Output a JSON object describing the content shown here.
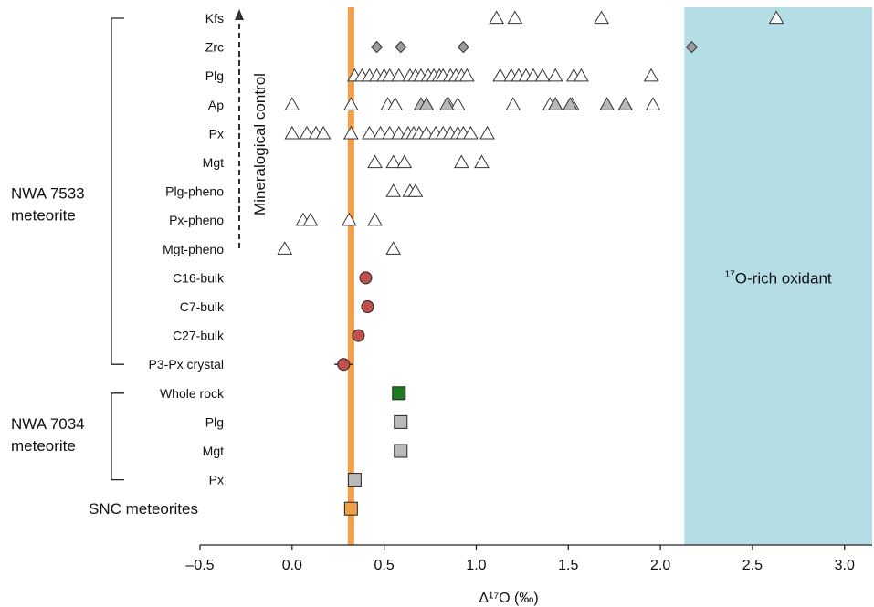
{
  "colors": {
    "oxidant_band": "#b4dde6",
    "snc_line": "#f0a04b",
    "open_triangle": "#ffffff",
    "grey_marker": "#b9b9b9",
    "diamond": "#9c9c9c",
    "bulk_circle": "#c0504d",
    "whole_rock": "#1f7a1f",
    "snc_square": "#f0a04b"
  },
  "chart_data": {
    "type": "scatter",
    "xlabel": "Δ¹⁷O (‰)",
    "xlim": [
      -0.5,
      3.15
    ],
    "xticks": [
      -0.5,
      0.0,
      0.5,
      1.0,
      1.5,
      2.0,
      2.5,
      3.0
    ],
    "xtick_labels": [
      "–0.5",
      "0.0",
      "0.5",
      "1.0",
      "1.5",
      "2.0",
      "2.5",
      "3.0"
    ],
    "snc_line_x": 0.32,
    "oxidant_region": {
      "x_min": 2.13,
      "label_pre": "17",
      "label": "O-rich oxidant"
    },
    "annotation": "Mineralogical control",
    "groups": [
      {
        "label": "NWA 7533\nmeteorite",
        "lines": [
          "NWA 7533",
          "meteorite"
        ]
      },
      {
        "label": "NWA 7034\nmeteorite",
        "lines": [
          "NWA 7034",
          "meteorite"
        ]
      }
    ],
    "bottom_label": "SNC meteorites",
    "categories": [
      "Kfs",
      "Zrc",
      "Plg",
      "Ap",
      "Px",
      "Mgt",
      "Plg-pheno",
      "Px-pheno",
      "Mgt-pheno",
      "C16-bulk",
      "C7-bulk",
      "C27-bulk",
      "P3-Px crystal",
      "Whole rock",
      "Plg",
      "Mgt",
      "Px",
      "SNC meteorites"
    ],
    "series": [
      {
        "row": 0,
        "marker": "triangle-open",
        "x": [
          1.11,
          1.21,
          1.68,
          2.63
        ]
      },
      {
        "row": 1,
        "marker": "diamond",
        "x": [
          0.46,
          0.59,
          0.93,
          2.17
        ]
      },
      {
        "row": 2,
        "marker": "triangle-open",
        "x": [
          0.34,
          0.38,
          0.42,
          0.46,
          0.5,
          0.53,
          0.58,
          0.64,
          0.67,
          0.7,
          0.74,
          0.77,
          0.8,
          0.82,
          0.86,
          0.89,
          0.92,
          0.95,
          1.13,
          1.19,
          1.23,
          1.27,
          1.31,
          1.36,
          1.43,
          1.53,
          1.57,
          1.95
        ]
      },
      {
        "row": 3,
        "marker": "triangle-open",
        "x": [
          0.0,
          0.32,
          0.52,
          0.56,
          0.73,
          0.85,
          0.9,
          1.2,
          1.4,
          1.43,
          1.52,
          1.71,
          1.81,
          1.96
        ]
      },
      {
        "row": 3,
        "marker": "triangle-grey",
        "x": [
          0.7,
          0.73,
          0.84,
          1.43,
          1.51,
          1.71,
          1.81
        ]
      },
      {
        "row": 4,
        "marker": "triangle-open",
        "x": [
          0.0,
          0.08,
          0.13,
          0.17,
          0.32,
          0.42,
          0.48,
          0.53,
          0.58,
          0.63,
          0.66,
          0.69,
          0.73,
          0.78,
          0.82,
          0.86,
          0.9,
          0.93,
          0.97,
          1.06
        ]
      },
      {
        "row": 5,
        "marker": "triangle-open",
        "x": [
          0.45,
          0.55,
          0.61,
          0.92,
          1.03
        ]
      },
      {
        "row": 6,
        "marker": "triangle-open",
        "x": [
          0.55,
          0.64,
          0.67
        ]
      },
      {
        "row": 7,
        "marker": "triangle-open",
        "x": [
          0.06,
          0.1,
          0.31,
          0.45
        ]
      },
      {
        "row": 8,
        "marker": "triangle-open",
        "x": [
          -0.04,
          0.55
        ]
      },
      {
        "row": 9,
        "marker": "circle",
        "x": [
          0.4
        ],
        "xerr": 0.03
      },
      {
        "row": 10,
        "marker": "circle",
        "x": [
          0.41
        ],
        "xerr": 0.03
      },
      {
        "row": 11,
        "marker": "circle",
        "x": [
          0.36
        ],
        "xerr": 0.03
      },
      {
        "row": 12,
        "marker": "circle",
        "x": [
          0.28
        ],
        "xerr": 0.05
      },
      {
        "row": 13,
        "marker": "square-green",
        "x": [
          0.58
        ]
      },
      {
        "row": 14,
        "marker": "square-grey",
        "x": [
          0.59
        ]
      },
      {
        "row": 15,
        "marker": "square-grey",
        "x": [
          0.59
        ]
      },
      {
        "row": 16,
        "marker": "square-grey",
        "x": [
          0.34
        ]
      },
      {
        "row": 17,
        "marker": "square-orange",
        "x": [
          0.32
        ]
      }
    ]
  }
}
